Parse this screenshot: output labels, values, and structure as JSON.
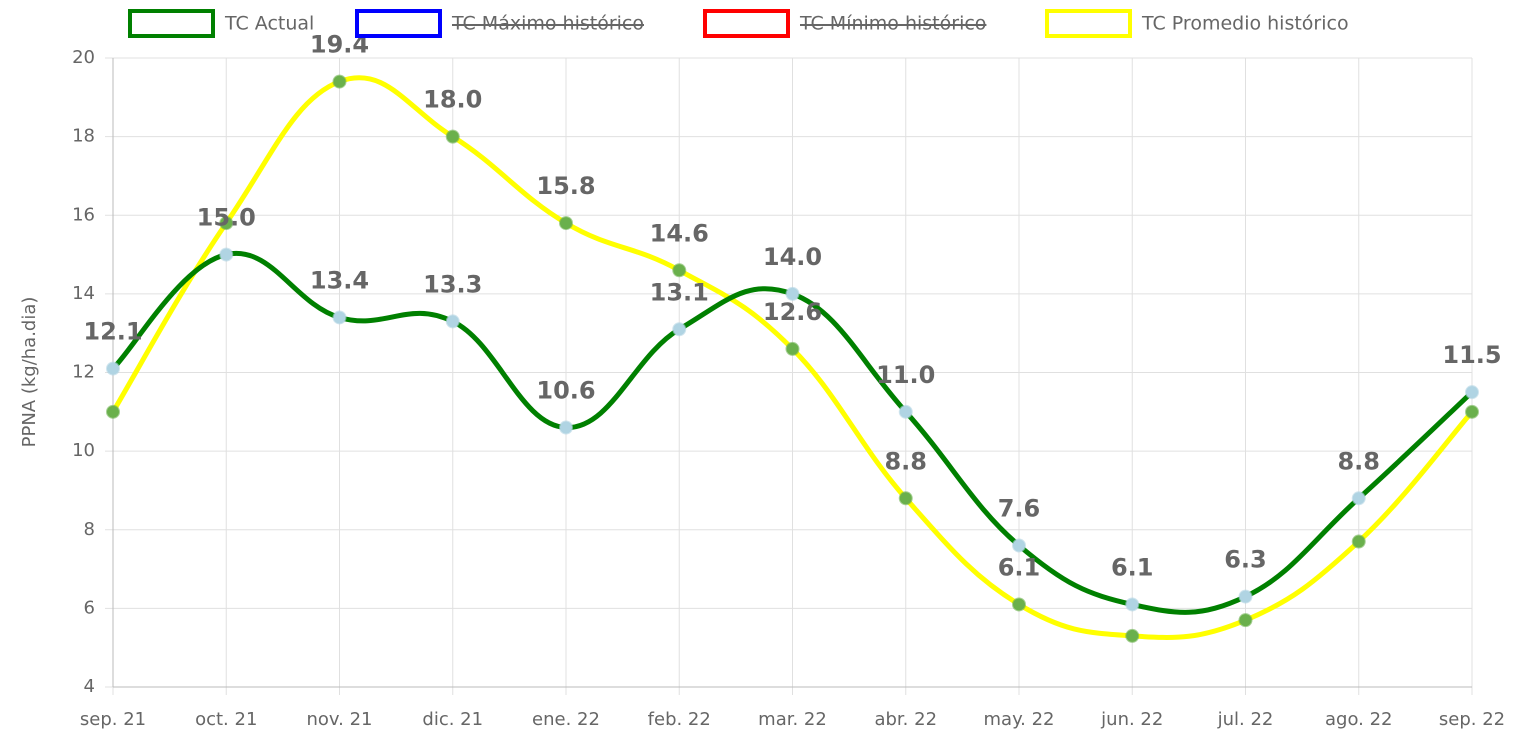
{
  "chart_data": {
    "type": "line",
    "y_label": "PPNA (kg/ha.dia)",
    "categories": [
      "sep. 21",
      "oct. 21",
      "nov. 21",
      "dic. 21",
      "ene. 22",
      "feb. 22",
      "mar. 22",
      "abr. 22",
      "may. 22",
      "jun. 22",
      "jul. 22",
      "ago. 22",
      "sep. 22"
    ],
    "series": [
      {
        "name": "TC Actual",
        "color": "#008000",
        "point_color": "#b0d4e3",
        "values": [
          12.1,
          15.0,
          13.4,
          13.3,
          10.6,
          13.1,
          14.0,
          11.0,
          7.6,
          6.1,
          6.3,
          8.8,
          11.5
        ],
        "value_labels": [
          "12.1",
          "15.0",
          "13.4",
          "13.3",
          "10.6",
          "13.1",
          "14.0",
          "11.0",
          "7.6",
          "6.1",
          "6.3",
          "8.8",
          "11.5"
        ]
      },
      {
        "name": "TC Máximo histórico",
        "color": "#0000ff",
        "hidden": true
      },
      {
        "name": "TC Mínimo histórico",
        "color": "#ff0000",
        "hidden": true
      },
      {
        "name": "TC Promedio histórico",
        "color": "#ffff00",
        "point_color": "#6ab04c",
        "values": [
          11.0,
          15.8,
          19.4,
          18.0,
          15.8,
          14.6,
          12.6,
          8.8,
          6.1,
          5.3,
          5.7,
          7.7,
          11.0
        ],
        "value_labels": [
          null,
          null,
          "19.4",
          "18.0",
          "15.8",
          "14.6",
          "12.6",
          "8.8",
          "6.1",
          null,
          null,
          null,
          null
        ]
      }
    ],
    "ylim": [
      4,
      20
    ],
    "yticks": [
      4,
      6,
      8,
      10,
      12,
      14,
      16,
      18,
      20
    ],
    "grid": true,
    "legend": "top"
  }
}
